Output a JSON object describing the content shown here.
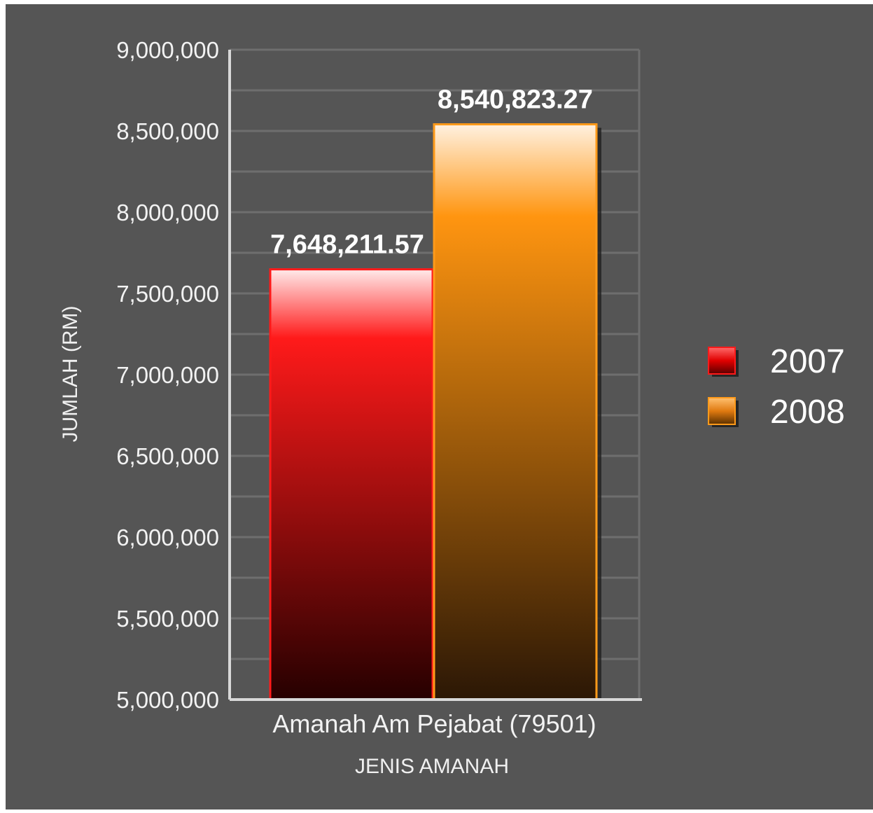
{
  "chart_data": {
    "type": "bar",
    "categories": [
      "Amanah Am Pejabat (79501)"
    ],
    "series": [
      {
        "name": "2007",
        "values": [
          7648211.57
        ],
        "value_label": "7,648,211.57",
        "color": "#ff1a1a",
        "color_dark": "#2a0000"
      },
      {
        "name": "2008",
        "values": [
          8540823.27
        ],
        "value_label": "8,540,823.27",
        "color": "#ff9a1a",
        "color_dark": "#2e1a05"
      }
    ],
    "title": "",
    "xlabel": "JENIS AMANAH",
    "ylabel": "JUMLAH (RM)",
    "ylim": [
      5000000,
      9000000
    ],
    "yticks": [
      5000000,
      5500000,
      6000000,
      6500000,
      7000000,
      7500000,
      8000000,
      8500000,
      9000000
    ],
    "ytick_labels": [
      "5,000,000",
      "5,500,000",
      "6,000,000",
      "6,500,000",
      "7,000,000",
      "7,500,000",
      "8,000,000",
      "8,500,000",
      "9,000,000"
    ],
    "grid": true,
    "legend_position": "right",
    "background_color": "#555555"
  }
}
